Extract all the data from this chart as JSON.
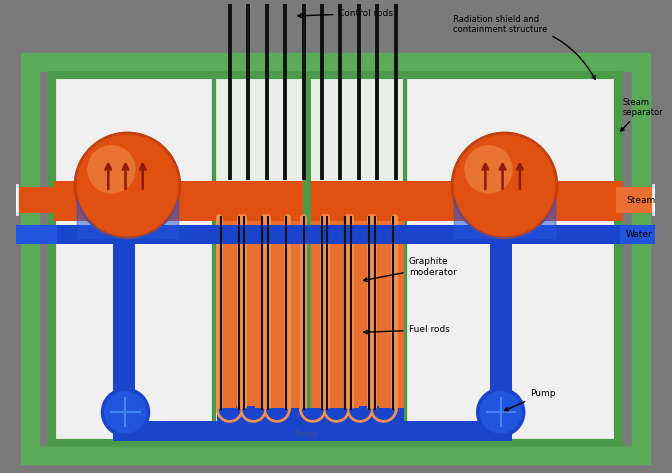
{
  "bg_outer": "#7a7a7a",
  "bg_inner": "#e8e8e8",
  "border_green_outer": "#5aaa5a",
  "border_green_mid": "#4a9a4a",
  "border_green_inner": "#88cc88",
  "orange_main": "#e05010",
  "orange_mid": "#e87030",
  "orange_light": "#f09050",
  "blue_dark": "#1a44cc",
  "blue_mid": "#2255dd",
  "blue_light": "#4488ee",
  "white_bg": "#f0f0f0",
  "cream_bg": "#e8f0e8",
  "dark_rod": "#111111",
  "dark_gray": "#333333",
  "figsize": [
    6.72,
    4.73
  ],
  "dpi": 100,
  "labels": {
    "control_rods": "Control rods",
    "radiation_shield": "Radiation shield and\ncontainment structure",
    "steam_separator": "Steam\nseparator",
    "steam": "Steam",
    "water": "Water",
    "graphite_mod": "Graphite\nmoderator",
    "fuel_rods": "Fuel rods",
    "pump": "Pump"
  }
}
